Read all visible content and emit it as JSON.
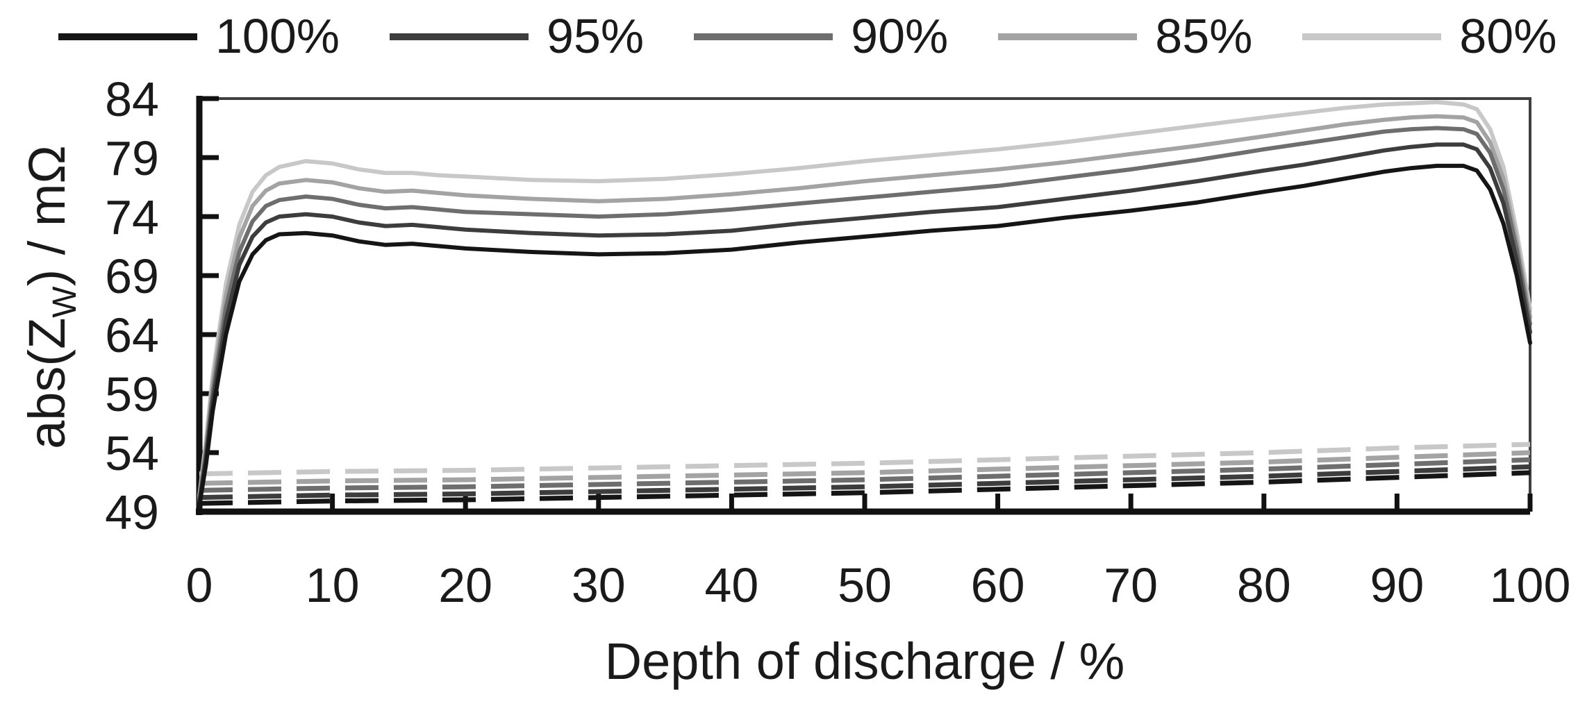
{
  "chart_data": {
    "type": "line",
    "title": "",
    "xlabel": "Depth of discharge / %",
    "ylabel": {
      "prefix": "abs(Z",
      "sub": "W",
      "suffix": ") / mΩ"
    },
    "xlim": [
      0,
      100
    ],
    "ylim": [
      49,
      84
    ],
    "x_ticks": [
      0,
      10,
      20,
      30,
      40,
      50,
      60,
      70,
      80,
      90,
      100
    ],
    "y_ticks": [
      49,
      54,
      59,
      64,
      69,
      74,
      79,
      84
    ],
    "grid": false,
    "colors": {
      "axis": "#111111",
      "box_border": "#3f3f3f",
      "text": "#1a1a1a"
    },
    "legend": {
      "position": "top",
      "entries": [
        {
          "label": "100%",
          "color": "#151515"
        },
        {
          "label": "95%",
          "color": "#3d3d3d"
        },
        {
          "label": "90%",
          "color": "#6e6e6e"
        },
        {
          "label": "85%",
          "color": "#a3a3a3"
        },
        {
          "label": "80%",
          "color": "#c8c8c8"
        }
      ]
    },
    "series": [
      {
        "name": "100% solid",
        "legend": "100%",
        "style": "solid",
        "color": "#151515",
        "x": [
          0,
          0.5,
          1,
          2,
          3,
          4,
          5,
          6,
          8,
          10,
          12,
          14,
          16,
          18,
          20,
          25,
          30,
          35,
          40,
          45,
          50,
          55,
          60,
          65,
          70,
          75,
          80,
          83,
          86,
          89,
          91,
          93,
          95,
          96,
          97,
          98,
          99,
          100
        ],
        "y": [
          49.5,
          53,
          57.5,
          64,
          68.5,
          70.8,
          72,
          72.5,
          72.6,
          72.4,
          71.9,
          71.6,
          71.7,
          71.5,
          71.3,
          71,
          70.8,
          70.9,
          71.2,
          71.8,
          72.3,
          72.8,
          73.2,
          73.9,
          74.5,
          75.2,
          76.1,
          76.6,
          77.2,
          77.8,
          78.1,
          78.3,
          78.3,
          77.9,
          76.3,
          73.4,
          69,
          63.3
        ]
      },
      {
        "name": "95% solid",
        "legend": "95%",
        "style": "solid",
        "color": "#3d3d3d",
        "x": [
          0,
          0.5,
          1,
          2,
          3,
          4,
          5,
          6,
          8,
          10,
          12,
          14,
          16,
          18,
          20,
          25,
          30,
          35,
          40,
          45,
          50,
          55,
          60,
          65,
          70,
          75,
          80,
          83,
          86,
          89,
          91,
          93,
          95,
          96,
          97,
          98,
          99,
          100
        ],
        "y": [
          49.7,
          53.5,
          58.3,
          65.2,
          69.9,
          72.3,
          73.5,
          74,
          74.2,
          74,
          73.5,
          73.2,
          73.3,
          73.1,
          72.9,
          72.6,
          72.4,
          72.5,
          72.8,
          73.4,
          73.9,
          74.4,
          74.8,
          75.5,
          76.2,
          77,
          77.9,
          78.4,
          79,
          79.6,
          79.9,
          80.1,
          80.1,
          79.7,
          78.1,
          75.1,
          70.3,
          64.2
        ]
      },
      {
        "name": "90% solid",
        "legend": "90%",
        "style": "solid",
        "color": "#6e6e6e",
        "x": [
          0,
          0.5,
          1,
          2,
          3,
          4,
          5,
          6,
          8,
          10,
          12,
          14,
          16,
          18,
          20,
          25,
          30,
          35,
          40,
          45,
          50,
          55,
          60,
          65,
          70,
          75,
          80,
          83,
          86,
          89,
          91,
          93,
          95,
          96,
          97,
          98,
          99,
          100
        ],
        "y": [
          49.9,
          54,
          59,
          66.3,
          71,
          73.6,
          74.9,
          75.4,
          75.7,
          75.5,
          75,
          74.7,
          74.8,
          74.6,
          74.4,
          74.2,
          74,
          74.2,
          74.6,
          75.1,
          75.6,
          76.1,
          76.6,
          77.3,
          78,
          78.8,
          79.7,
          80.2,
          80.7,
          81.2,
          81.4,
          81.5,
          81.4,
          81,
          79.4,
          76.3,
          71.2,
          64.9
        ]
      },
      {
        "name": "85% solid",
        "legend": "85%",
        "style": "solid",
        "color": "#a3a3a3",
        "x": [
          0,
          0.5,
          1,
          2,
          3,
          4,
          5,
          6,
          8,
          10,
          12,
          14,
          16,
          18,
          20,
          25,
          30,
          35,
          40,
          45,
          50,
          55,
          60,
          65,
          70,
          75,
          80,
          83,
          86,
          89,
          91,
          93,
          95,
          96,
          97,
          98,
          99,
          100
        ],
        "y": [
          50.1,
          54.5,
          59.8,
          67.3,
          72.2,
          74.9,
          76.2,
          76.8,
          77.1,
          76.9,
          76.4,
          76.1,
          76.2,
          76,
          75.8,
          75.5,
          75.3,
          75.5,
          75.9,
          76.4,
          77,
          77.5,
          78,
          78.6,
          79.3,
          80,
          80.8,
          81.3,
          81.8,
          82.2,
          82.4,
          82.5,
          82.4,
          82,
          80.3,
          77.2,
          71.9,
          65.5
        ]
      },
      {
        "name": "80% solid",
        "legend": "80%",
        "style": "solid",
        "color": "#c8c8c8",
        "x": [
          0,
          0.5,
          1,
          2,
          3,
          4,
          5,
          6,
          8,
          10,
          12,
          14,
          16,
          18,
          20,
          25,
          30,
          35,
          40,
          45,
          50,
          55,
          60,
          65,
          70,
          75,
          80,
          83,
          86,
          89,
          91,
          93,
          95,
          96,
          97,
          98,
          99,
          100
        ],
        "y": [
          50.3,
          55,
          60.5,
          68.3,
          73.3,
          76.1,
          77.5,
          78.2,
          78.7,
          78.5,
          78,
          77.7,
          77.7,
          77.5,
          77.4,
          77.1,
          77,
          77.2,
          77.6,
          78.1,
          78.7,
          79.2,
          79.7,
          80.3,
          81,
          81.7,
          82.4,
          82.8,
          83.2,
          83.5,
          83.6,
          83.7,
          83.5,
          83.1,
          81.4,
          78.2,
          72.7,
          66.2
        ]
      },
      {
        "name": "100% dashed",
        "legend": "100%",
        "style": "dashed",
        "color": "#151515",
        "x": [
          0,
          10,
          20,
          30,
          40,
          50,
          60,
          70,
          80,
          90,
          100
        ],
        "y": [
          49.7,
          49.9,
          50,
          50.2,
          50.4,
          50.6,
          50.9,
          51.2,
          51.5,
          51.9,
          52.3
        ]
      },
      {
        "name": "95% dashed",
        "legend": "95%",
        "style": "dashed",
        "color": "#3d3d3d",
        "x": [
          0,
          10,
          20,
          30,
          40,
          50,
          60,
          70,
          80,
          90,
          100
        ],
        "y": [
          50.2,
          50.4,
          50.5,
          50.7,
          50.9,
          51.1,
          51.4,
          51.7,
          52,
          52.4,
          52.8
        ]
      },
      {
        "name": "90% dashed",
        "legend": "90%",
        "style": "dashed",
        "color": "#6e6e6e",
        "x": [
          0,
          10,
          20,
          30,
          40,
          50,
          60,
          70,
          80,
          90,
          100
        ],
        "y": [
          50.8,
          51,
          51.1,
          51.3,
          51.5,
          51.7,
          52,
          52.3,
          52.6,
          53,
          53.4
        ]
      },
      {
        "name": "85% dashed",
        "legend": "85%",
        "style": "dashed",
        "color": "#a3a3a3",
        "x": [
          0,
          10,
          20,
          30,
          40,
          50,
          60,
          70,
          80,
          90,
          100
        ],
        "y": [
          51.4,
          51.6,
          51.7,
          51.9,
          52.1,
          52.3,
          52.6,
          52.9,
          53.2,
          53.6,
          54
        ]
      },
      {
        "name": "80% dashed",
        "legend": "80%",
        "style": "dashed",
        "color": "#c8c8c8",
        "x": [
          0,
          10,
          20,
          30,
          40,
          50,
          60,
          70,
          80,
          90,
          100
        ],
        "y": [
          52.2,
          52.4,
          52.5,
          52.7,
          52.9,
          53.1,
          53.4,
          53.7,
          54,
          54.4,
          54.7
        ]
      }
    ]
  }
}
